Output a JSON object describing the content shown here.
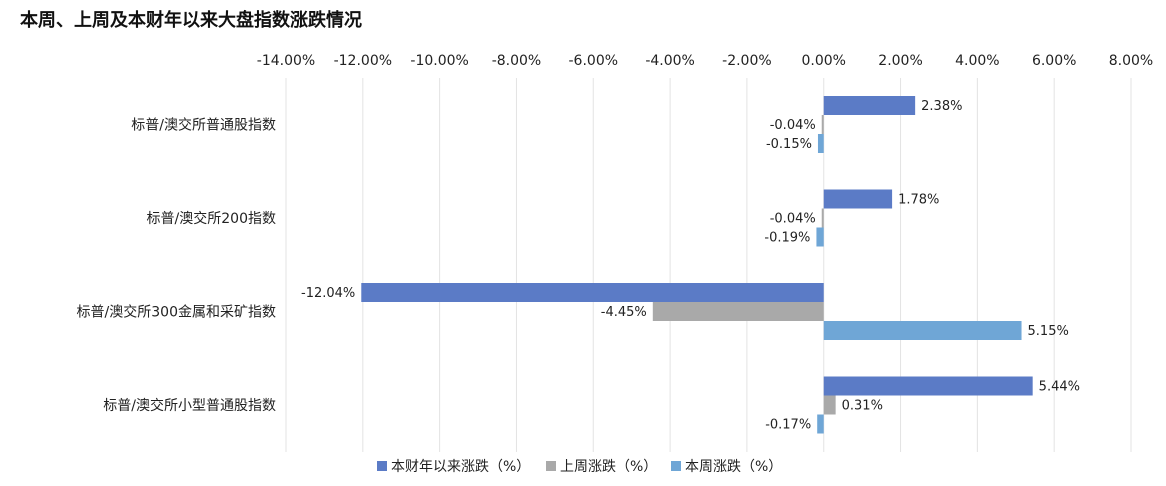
{
  "chart_data": {
    "type": "bar",
    "orientation": "horizontal",
    "title": "本周、上周及本财年以来大盘指数涨跌情况",
    "categories": [
      "标普/澳交所普通股指数",
      "标普/澳交所200指数",
      "标普/澳交所300金属和采矿指数",
      "标普/澳交所小型普通股指数"
    ],
    "series": [
      {
        "name": "本财年以来涨跌（%）",
        "color": "#5b7bc6",
        "values": [
          2.38,
          1.78,
          -12.04,
          5.44
        ],
        "labels": [
          "2.38%",
          "1.78%",
          "-12.04%",
          "5.44%"
        ]
      },
      {
        "name": "上周涨跌（%）",
        "color": "#a9a9a9",
        "values": [
          -0.04,
          -0.04,
          -4.45,
          0.31
        ],
        "labels": [
          "-0.04%",
          "-0.04%",
          "-4.45%",
          "0.31%"
        ]
      },
      {
        "name": "本周涨跌（%）",
        "color": "#6fa6d6",
        "values": [
          -0.15,
          -0.19,
          5.15,
          -0.17
        ],
        "labels": [
          "-0.15%",
          "-0.19%",
          "5.15%",
          "-0.17%"
        ]
      }
    ],
    "xlim": [
      -14,
      8
    ],
    "x_ticks": [
      -14,
      -12,
      -10,
      -8,
      -6,
      -4,
      -2,
      0,
      2,
      4,
      6,
      8
    ],
    "x_tick_labels": [
      "-14.00%",
      "-12.00%",
      "-10.00%",
      "-8.00%",
      "-6.00%",
      "-4.00%",
      "-2.00%",
      "0.00%",
      "2.00%",
      "4.00%",
      "6.00%",
      "8.00%"
    ],
    "x_axis_position": "top",
    "grid": true,
    "legend_position": "bottom"
  }
}
